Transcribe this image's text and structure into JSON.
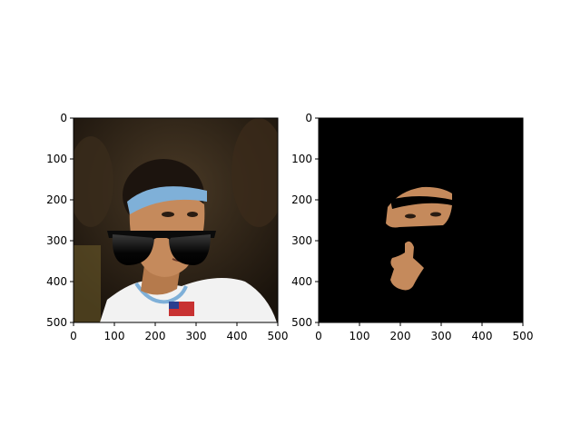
{
  "chart_data": [
    {
      "type": "image",
      "panel": "left",
      "content": "photo-with-sunglasses-overlay",
      "xlim": [
        0,
        500
      ],
      "ylim": [
        500,
        0
      ],
      "xticks": [
        0,
        100,
        200,
        300,
        400,
        500
      ],
      "yticks": [
        0,
        100,
        200,
        300,
        400,
        500
      ],
      "title": "",
      "xlabel": "",
      "ylabel": ""
    },
    {
      "type": "image",
      "panel": "right",
      "content": "segmented-skin-mask",
      "xlim": [
        0,
        500
      ],
      "ylim": [
        500,
        0
      ],
      "xticks": [
        0,
        100,
        200,
        300,
        400,
        500
      ],
      "yticks": [
        0,
        100,
        200,
        300,
        400,
        500
      ],
      "title": "",
      "xlabel": "",
      "ylabel": ""
    }
  ],
  "colors": {
    "background_left": "#2a2016",
    "mask_background": "#000000",
    "skin": "#c58a5c",
    "headband": "#7fb0d8",
    "sunglasses": "#0b0b0b"
  }
}
